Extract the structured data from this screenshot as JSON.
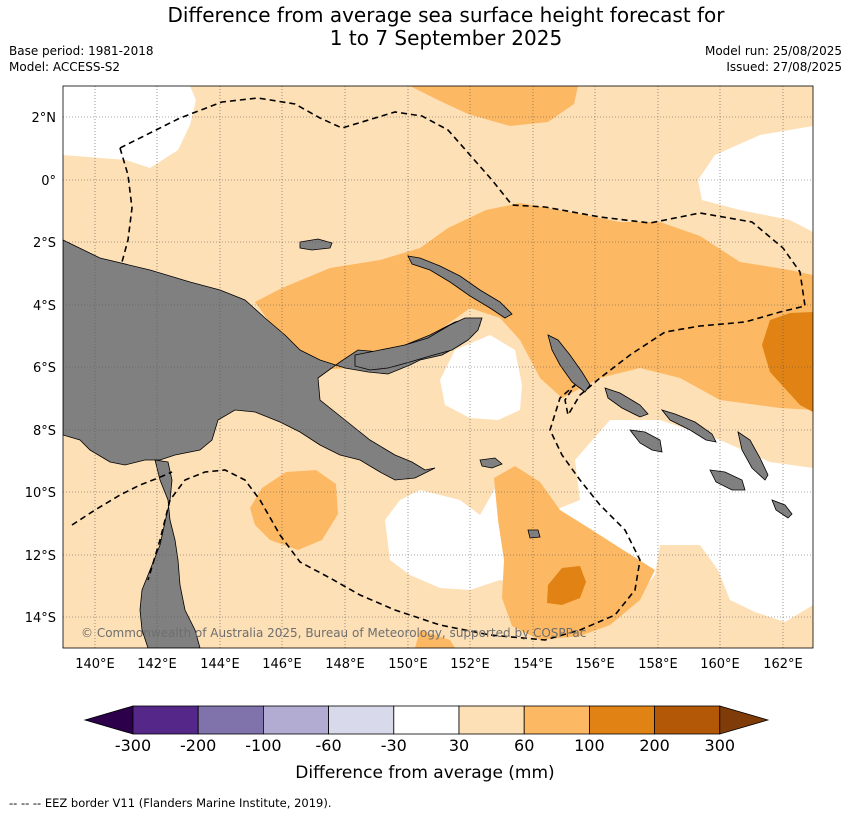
{
  "title_line1": "Difference from average sea surface height forecast for",
  "title_line2": "1 to 7 September 2025",
  "base_period": "Base period: 1981-2018",
  "model": "Model: ACCESS-S2",
  "model_run": "Model run: 25/08/2025",
  "issued": "Issued: 27/08/2025",
  "copyright": "© Commonwealth of Australia 2025, Bureau of Meteorology, supported by COSPPac",
  "lon_labels": [
    "140°E",
    "142°E",
    "144°E",
    "146°E",
    "148°E",
    "150°E",
    "152°E",
    "154°E",
    "156°E",
    "158°E",
    "160°E",
    "162°E"
  ],
  "lat_labels": [
    "2°N",
    "0°",
    "2°S",
    "4°S",
    "6°S",
    "8°S",
    "10°S",
    "12°S",
    "14°S"
  ],
  "colorbar": {
    "title": "Difference from average (mm)",
    "ticks": [
      "-300",
      "-200",
      "-100",
      "-60",
      "-30",
      "30",
      "60",
      "100",
      "200",
      "300"
    ],
    "colors": [
      "#2d004b",
      "#542788",
      "#8073ac",
      "#b2abd2",
      "#d8daeb",
      "#ffffff",
      "#fee0b6",
      "#fdb863",
      "#e08214",
      "#b35806",
      "#7f3b08"
    ]
  },
  "legend_text": "--  --  -- EEZ border V11 (Flanders Marine Institute, 2019)."
}
